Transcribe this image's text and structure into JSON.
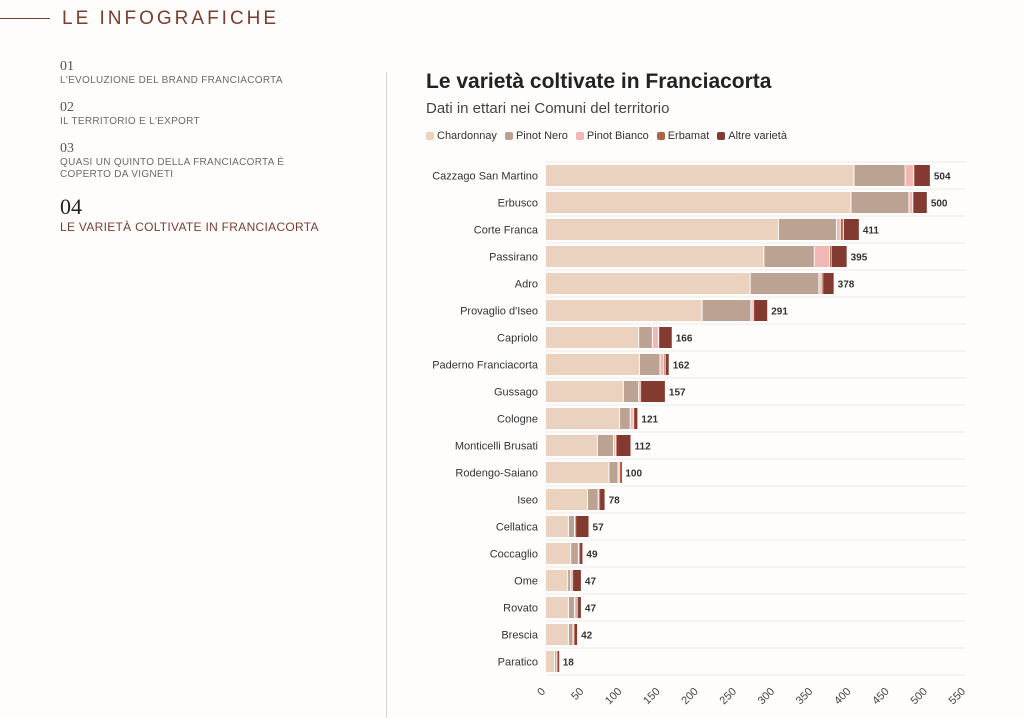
{
  "header": {
    "title": "LE INFOGRAFICHE"
  },
  "toc": [
    {
      "num": "01",
      "label": "L'EVOLUZIONE DEL BRAND FRANCIACORTA",
      "active": false
    },
    {
      "num": "02",
      "label": "IL TERRITORIO E L'EXPORT",
      "active": false
    },
    {
      "num": "03",
      "label": "QUASI UN QUINTO DELLA FRANCIACORTA È COPERTO DA VIGNETI",
      "active": false
    },
    {
      "num": "04",
      "label": "LE VARIETÀ COLTIVATE IN FRANCIACORTA",
      "active": true
    }
  ],
  "chart_data": {
    "type": "bar",
    "orientation": "horizontal",
    "stacked": true,
    "title": "Le varietà coltivate in Franciacorta",
    "subtitle": "Dati in ettari nei Comuni del territorio",
    "legend_position": "top-left",
    "xlim": [
      0,
      550
    ],
    "xticks": [
      0,
      50,
      100,
      150,
      200,
      250,
      300,
      350,
      400,
      450,
      500,
      550
    ],
    "grid": true,
    "categories": [
      "Cazzago San Martino",
      "Erbusco",
      "Corte Franca",
      "Passirano",
      "Adro",
      "Provaglio d'Iseo",
      "Capriolo",
      "Paderno Franciacorta",
      "Gussago",
      "Cologne",
      "Monticelli Brusati",
      "Rodengo-Saiano",
      "Iseo",
      "Cellatica",
      "Coccaglio",
      "Ome",
      "Rovato",
      "Brescia",
      "Paratico"
    ],
    "totals": [
      504,
      500,
      411,
      395,
      378,
      291,
      166,
      162,
      157,
      121,
      112,
      100,
      78,
      57,
      49,
      47,
      47,
      42,
      18
    ],
    "series": [
      {
        "name": "Chardonnay",
        "color": "#ead2be",
        "values": [
          404,
          400,
          305,
          286,
          268,
          205,
          122,
          123,
          102,
          97,
          68,
          83,
          55,
          30,
          33,
          29,
          30,
          30,
          12
        ]
      },
      {
        "name": "Pinot Nero",
        "color": "#bca293",
        "values": [
          67,
          76,
          76,
          66,
          90,
          64,
          18,
          27,
          20,
          14,
          21,
          12,
          14,
          8,
          10,
          4,
          8,
          6,
          2
        ]
      },
      {
        "name": "Pinot Bianco",
        "color": "#f0b7b4",
        "values": [
          11,
          5,
          5,
          20,
          3,
          3,
          8,
          5,
          2,
          4,
          3,
          2,
          1,
          1,
          1,
          2,
          2,
          1,
          1
        ]
      },
      {
        "name": "Erbamat",
        "color": "#b06345",
        "values": [
          1,
          0,
          4,
          2,
          2,
          1,
          1,
          2,
          1,
          1,
          1,
          1,
          1,
          1,
          1,
          1,
          2,
          1,
          1
        ]
      },
      {
        "name": "Altre varietà",
        "color": "#833a31",
        "values": [
          21,
          19,
          21,
          21,
          15,
          18,
          17,
          5,
          32,
          5,
          19,
          2,
          7,
          17,
          4,
          11,
          5,
          4,
          2
        ]
      }
    ]
  }
}
